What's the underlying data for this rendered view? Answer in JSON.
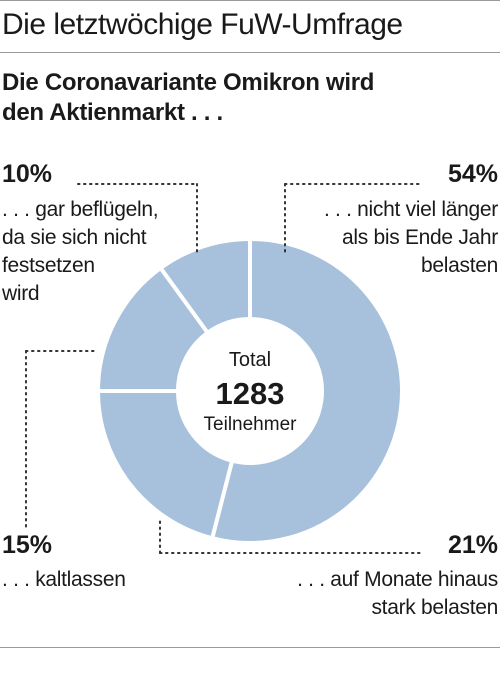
{
  "header": {
    "kicker": "Die letztwöchige FuW-Umfrage",
    "title_lines": [
      "Die Coronavariante Omikron wird",
      "den Aktienmarkt . . ."
    ]
  },
  "center": {
    "label_top": "Total",
    "total": "1283",
    "label_bottom": "Teilnehmer"
  },
  "colors": {
    "slice": "#a7c1dd",
    "separator": "#ffffff",
    "leader": "#333333"
  },
  "chart_data": {
    "type": "pie",
    "variant": "donut",
    "total_participants": 1283,
    "slices": [
      {
        "value": 54,
        "pct_label": "54%",
        "lines": [
          ". . . nicht viel länger",
          "als bis Ende Jahr",
          "belasten"
        ]
      },
      {
        "value": 21,
        "pct_label": "21%",
        "lines": [
          ". . . auf Monate hinaus",
          "stark belasten"
        ]
      },
      {
        "value": 15,
        "pct_label": "15%",
        "lines": [
          ". . . kaltlassen"
        ]
      },
      {
        "value": 10,
        "pct_label": "10%",
        "lines": [
          ". . . gar beflügeln,",
          "da sie sich nicht",
          "festsetzen",
          "wird"
        ]
      }
    ]
  }
}
